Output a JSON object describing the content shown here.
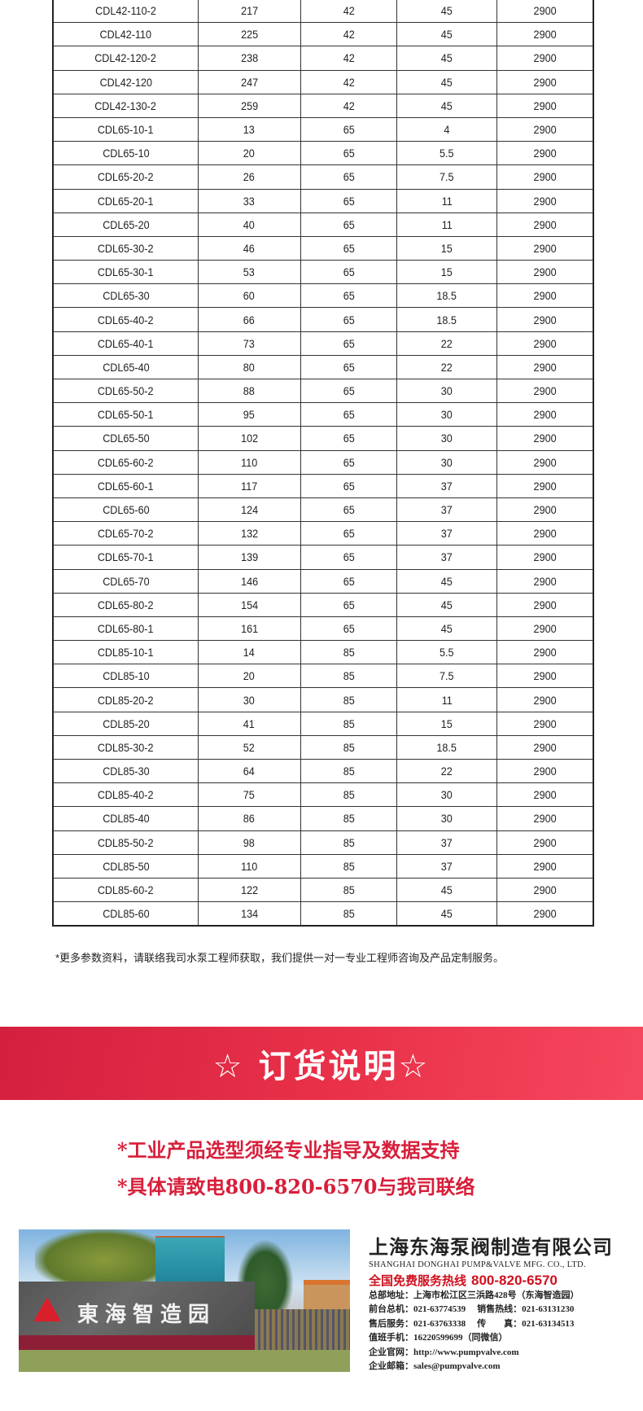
{
  "table": {
    "rows": [
      [
        "CDL42-110-2",
        "217",
        "42",
        "45",
        "2900"
      ],
      [
        "CDL42-110",
        "225",
        "42",
        "45",
        "2900"
      ],
      [
        "CDL42-120-2",
        "238",
        "42",
        "45",
        "2900"
      ],
      [
        "CDL42-120",
        "247",
        "42",
        "45",
        "2900"
      ],
      [
        "CDL42-130-2",
        "259",
        "42",
        "45",
        "2900"
      ],
      [
        "CDL65-10-1",
        "13",
        "65",
        "4",
        "2900"
      ],
      [
        "CDL65-10",
        "20",
        "65",
        "5.5",
        "2900"
      ],
      [
        "CDL65-20-2",
        "26",
        "65",
        "7.5",
        "2900"
      ],
      [
        "CDL65-20-1",
        "33",
        "65",
        "11",
        "2900"
      ],
      [
        "CDL65-20",
        "40",
        "65",
        "11",
        "2900"
      ],
      [
        "CDL65-30-2",
        "46",
        "65",
        "15",
        "2900"
      ],
      [
        "CDL65-30-1",
        "53",
        "65",
        "15",
        "2900"
      ],
      [
        "CDL65-30",
        "60",
        "65",
        "18.5",
        "2900"
      ],
      [
        "CDL65-40-2",
        "66",
        "65",
        "18.5",
        "2900"
      ],
      [
        "CDL65-40-1",
        "73",
        "65",
        "22",
        "2900"
      ],
      [
        "CDL65-40",
        "80",
        "65",
        "22",
        "2900"
      ],
      [
        "CDL65-50-2",
        "88",
        "65",
        "30",
        "2900"
      ],
      [
        "CDL65-50-1",
        "95",
        "65",
        "30",
        "2900"
      ],
      [
        "CDL65-50",
        "102",
        "65",
        "30",
        "2900"
      ],
      [
        "CDL65-60-2",
        "110",
        "65",
        "30",
        "2900"
      ],
      [
        "CDL65-60-1",
        "117",
        "65",
        "37",
        "2900"
      ],
      [
        "CDL65-60",
        "124",
        "65",
        "37",
        "2900"
      ],
      [
        "CDL65-70-2",
        "132",
        "65",
        "37",
        "2900"
      ],
      [
        "CDL65-70-1",
        "139",
        "65",
        "37",
        "2900"
      ],
      [
        "CDL65-70",
        "146",
        "65",
        "45",
        "2900"
      ],
      [
        "CDL65-80-2",
        "154",
        "65",
        "45",
        "2900"
      ],
      [
        "CDL65-80-1",
        "161",
        "65",
        "45",
        "2900"
      ],
      [
        "CDL85-10-1",
        "14",
        "85",
        "5.5",
        "2900"
      ],
      [
        "CDL85-10",
        "20",
        "85",
        "7.5",
        "2900"
      ],
      [
        "CDL85-20-2",
        "30",
        "85",
        "11",
        "2900"
      ],
      [
        "CDL85-20",
        "41",
        "85",
        "15",
        "2900"
      ],
      [
        "CDL85-30-2",
        "52",
        "85",
        "18.5",
        "2900"
      ],
      [
        "CDL85-30",
        "64",
        "85",
        "22",
        "2900"
      ],
      [
        "CDL85-40-2",
        "75",
        "85",
        "30",
        "2900"
      ],
      [
        "CDL85-40",
        "86",
        "85",
        "30",
        "2900"
      ],
      [
        "CDL85-50-2",
        "98",
        "85",
        "37",
        "2900"
      ],
      [
        "CDL85-50",
        "110",
        "85",
        "37",
        "2900"
      ],
      [
        "CDL85-60-2",
        "122",
        "85",
        "45",
        "2900"
      ],
      [
        "CDL85-60",
        "134",
        "85",
        "45",
        "2900"
      ]
    ]
  },
  "footnote": "*更多参数资料，请联络我司水泵工程师获取，我们提供一对一专业工程师咨询及产品定制服务。",
  "banner": {
    "title": "☆ 订货说明☆",
    "color": "#e3304a"
  },
  "notes": [
    "*工业产品选型须经专业指导及数据支持",
    "*具体请致电800-820-6570与我司联络"
  ],
  "photo": {
    "sign_text": "東海智造园"
  },
  "company": {
    "cn_name": "上海东海泵阀制造有限公司",
    "en_name": "SHANGHAI DONGHAI PUMP&VALVE MFG. CO., LTD.",
    "hotline_label": "全国免费服务热线",
    "hotline_number": "800-820-6570",
    "address": "总部地址：上海市松江区三浜路428号（东海智造园）",
    "front_desk": "前台总机：021-63774539",
    "sales_hotline": "销售热线：021-63131230",
    "after_sales": "售后服务：021-63763338",
    "fax": "传　　真：021-63134513",
    "mobile": "值班手机：16220599699（同微信）",
    "website": "企业官网：http://www.pumpvalve.com",
    "email": "企业邮箱：sales@pumpvalve.com"
  }
}
